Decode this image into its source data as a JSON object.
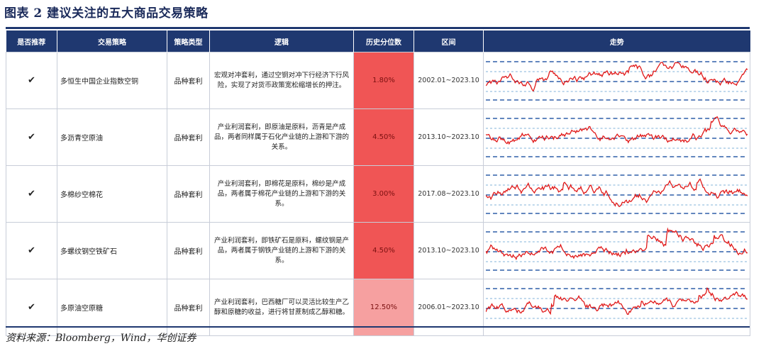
{
  "title": "图表 2  建议关注的五大商品交易策略",
  "headers": [
    "是否推荐",
    "交易策略",
    "策略类型",
    "逻辑",
    "历史分位数",
    "区间",
    "走势"
  ],
  "rows": [
    {
      "recommend": "✔",
      "strategy": "多恒生中国企业指数空铜",
      "type": "品种套利",
      "logic": "宏观对冲套利，通过空铜对冲下行经济下行风险，实现了对货币政策宽松缩增长的押注。",
      "percentile": "1.80%",
      "percentile_value": 0.018,
      "range": "2002.01~2023.10",
      "pct_color": "#f05555"
    },
    {
      "recommend": "✔",
      "strategy": "多沥青空原油",
      "type": "品种套利",
      "logic": "产业利润套利，即原油是原料，沥青是产成品，两者同样属于石化产业链的上游和下游的关系。",
      "percentile": "4.50%",
      "percentile_value": 0.045,
      "range": "2013.10~2023.10",
      "pct_color": "#f05555"
    },
    {
      "recommend": "✔",
      "strategy": "多棉纱空棉花",
      "type": "品种套利",
      "logic": "产业利润套利，即棉花是原料，棉纱是产成品，两者属于棉花产业链的上游和下游的关系。",
      "percentile": "3.00%",
      "percentile_value": 0.03,
      "range": "2017.08~2023.10",
      "pct_color": "#f05555"
    },
    {
      "recommend": "✔",
      "strategy": "多螺纹钢空铁矿石",
      "type": "品种套利",
      "logic": "产业利润套利，即铁矿石是原料，螺纹钢是产品，两者属于钢铁产业链的上游和下游的关系。",
      "percentile": "4.50%",
      "percentile_value": 0.045,
      "range": "2013.10~2023.10",
      "pct_color": "#f05555"
    },
    {
      "recommend": "✔",
      "strategy": "多原油空原糖",
      "type": "品种套利",
      "logic": "产业利润套利，巴西糖厂可以灵活比较生产乙醇和原糖的收益，进行将甘蔗制成乙醇和糖。",
      "percentile": "12.50%",
      "percentile_value": 0.125,
      "range": "2006.01~2023.10",
      "pct_color": "#f6a0a0"
    }
  ],
  "chart_style": {
    "line_color": "#e01818",
    "band_color": "#2e5fa8",
    "light_band_color": "#7fb2d8"
  },
  "source": "资料来源：Bloomberg，Wind，华创证券"
}
